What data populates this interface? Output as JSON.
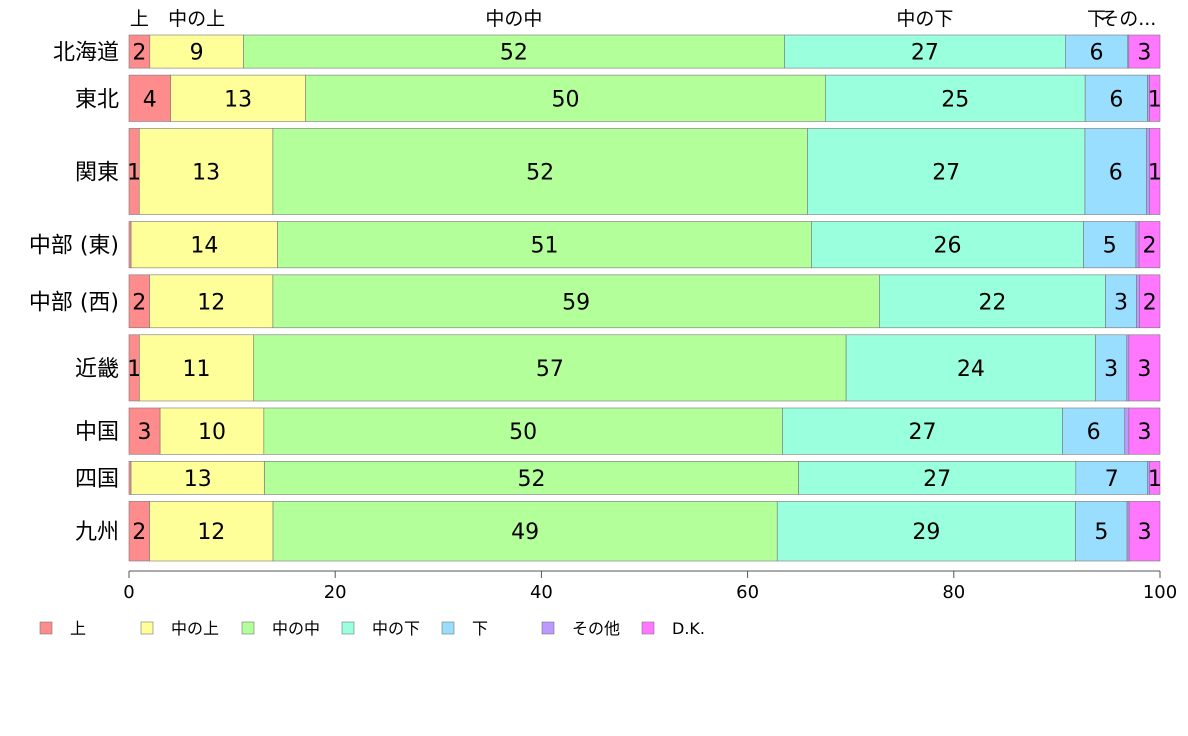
{
  "chart_data": {
    "type": "bar",
    "orientation": "horizontal",
    "stacked": true,
    "categories": [
      "北海道",
      "東北",
      "関東",
      "中部 (東)",
      "中部 (西)",
      "近畿",
      "中国",
      "四国",
      "九州"
    ],
    "series": [
      {
        "name": "上",
        "color": "#ff8c8c",
        "values": [
          2,
          4,
          1,
          0.2,
          2,
          1,
          3,
          0.2,
          2
        ],
        "labels": [
          "2",
          "4",
          "1",
          "",
          "2",
          "1",
          "3",
          "",
          "2"
        ]
      },
      {
        "name": "中の上",
        "color": "#ffff99",
        "values": [
          9,
          13,
          13,
          14,
          12,
          11,
          10,
          13,
          12
        ],
        "labels": [
          "9",
          "13",
          "13",
          "14",
          "12",
          "11",
          "10",
          "13",
          "12"
        ]
      },
      {
        "name": "中の中",
        "color": "#b3ff99",
        "values": [
          52,
          50,
          52,
          51,
          59,
          57,
          50,
          52,
          49
        ],
        "labels": [
          "52",
          "50",
          "52",
          "51",
          "59",
          "57",
          "50",
          "52",
          "49"
        ]
      },
      {
        "name": "中の下",
        "color": "#99ffdd",
        "values": [
          27,
          25,
          27,
          26,
          22,
          24,
          27,
          27,
          29
        ],
        "labels": [
          "27",
          "25",
          "27",
          "26",
          "22",
          "24",
          "27",
          "27",
          "29"
        ]
      },
      {
        "name": "下",
        "color": "#99ddff",
        "values": [
          6,
          6,
          6,
          5,
          3,
          3,
          6,
          7,
          5
        ],
        "labels": [
          "6",
          "6",
          "6",
          "5",
          "3",
          "3",
          "6",
          "7",
          "5"
        ]
      },
      {
        "name": "その他",
        "color": "#bb99ff",
        "values": [
          0.1,
          0.2,
          0.3,
          0.3,
          0.3,
          0.2,
          0.4,
          0.2,
          0.2
        ],
        "labels": [
          "",
          "",
          "",
          "",
          "",
          "",
          "",
          "",
          ""
        ]
      },
      {
        "name": "D.K.",
        "color": "#ff77ff",
        "values": [
          3,
          1,
          1,
          2,
          2,
          3,
          3,
          1,
          3
        ],
        "labels": [
          "3",
          "1",
          "1",
          "2",
          "2",
          "3",
          "3",
          "1",
          "3"
        ]
      }
    ],
    "top_labels": [
      "上",
      "中の上",
      "中の中",
      "中の下",
      "下",
      "その...",
      ""
    ],
    "xlim": [
      0,
      100
    ],
    "xticks": [
      0,
      20,
      40,
      60,
      80,
      100
    ],
    "grid": false,
    "legend_position": "bottom",
    "row_weights": [
      5,
      7,
      13,
      7,
      8,
      10,
      7,
      5,
      9
    ]
  }
}
